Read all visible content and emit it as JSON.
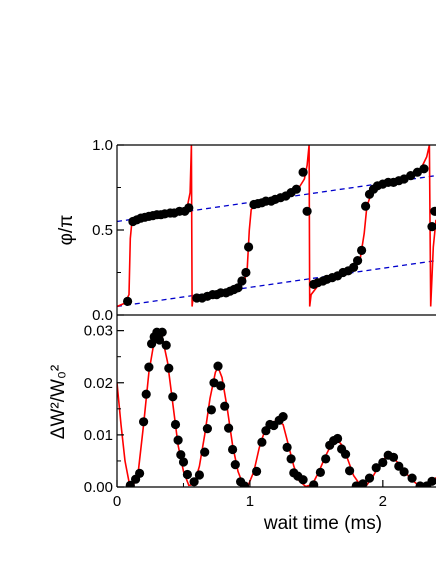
{
  "chart_data": [
    {
      "type": "scatter",
      "panel": "top",
      "ylabel": "φ/π",
      "xlim": [
        0,
        2.4
      ],
      "ylim": [
        0.0,
        1.0
      ],
      "yticks": [
        "0.0",
        "0.5",
        "1.0"
      ],
      "yticks_values": [
        0.0,
        0.5,
        1.0
      ],
      "grid": false,
      "colors": {
        "points": "#000000",
        "fit": "#ff0000",
        "reference": "#0000cc"
      },
      "series": [
        {
          "kind": "points",
          "values": [
            [
              0.08,
              0.08
            ],
            [
              0.12,
              0.55
            ],
            [
              0.15,
              0.56
            ],
            [
              0.18,
              0.57
            ],
            [
              0.21,
              0.575
            ],
            [
              0.24,
              0.58
            ],
            [
              0.27,
              0.585
            ],
            [
              0.3,
              0.59
            ],
            [
              0.33,
              0.59
            ],
            [
              0.36,
              0.595
            ],
            [
              0.4,
              0.6
            ],
            [
              0.43,
              0.6
            ],
            [
              0.47,
              0.61
            ],
            [
              0.51,
              0.61
            ],
            [
              0.54,
              0.63
            ],
            [
              0.6,
              0.1
            ],
            [
              0.64,
              0.1
            ],
            [
              0.68,
              0.11
            ],
            [
              0.72,
              0.12
            ],
            [
              0.75,
              0.12
            ],
            [
              0.78,
              0.13
            ],
            [
              0.82,
              0.13
            ],
            [
              0.85,
              0.14
            ],
            [
              0.88,
              0.15
            ],
            [
              0.91,
              0.16
            ],
            [
              0.94,
              0.2
            ],
            [
              0.97,
              0.25
            ],
            [
              0.99,
              0.4
            ],
            [
              1.03,
              0.65
            ],
            [
              1.06,
              0.655
            ],
            [
              1.09,
              0.66
            ],
            [
              1.12,
              0.67
            ],
            [
              1.16,
              0.67
            ],
            [
              1.19,
              0.68
            ],
            [
              1.23,
              0.69
            ],
            [
              1.27,
              0.7
            ],
            [
              1.31,
              0.72
            ],
            [
              1.35,
              0.74
            ],
            [
              1.4,
              0.84
            ],
            [
              1.43,
              0.61
            ],
            [
              1.48,
              0.18
            ],
            [
              1.51,
              0.19
            ],
            [
              1.55,
              0.2
            ],
            [
              1.58,
              0.21
            ],
            [
              1.62,
              0.22
            ],
            [
              1.66,
              0.23
            ],
            [
              1.7,
              0.25
            ],
            [
              1.74,
              0.26
            ],
            [
              1.78,
              0.28
            ],
            [
              1.81,
              0.32
            ],
            [
              1.84,
              0.38
            ],
            [
              1.87,
              0.64
            ],
            [
              1.9,
              0.71
            ],
            [
              1.93,
              0.74
            ],
            [
              1.96,
              0.76
            ],
            [
              2.0,
              0.77
            ],
            [
              2.04,
              0.78
            ],
            [
              2.08,
              0.78
            ],
            [
              2.12,
              0.79
            ],
            [
              2.16,
              0.8
            ],
            [
              2.21,
              0.82
            ],
            [
              2.26,
              0.84
            ],
            [
              2.31,
              0.86
            ],
            [
              2.37,
              0.52
            ],
            [
              2.39,
              0.61
            ]
          ]
        },
        {
          "kind": "fit",
          "values": [
            [
              0.0,
              0.05
            ],
            [
              0.06,
              0.07
            ],
            [
              0.09,
              0.12
            ],
            [
              0.1,
              0.45
            ],
            [
              0.11,
              0.53
            ],
            [
              0.14,
              0.56
            ],
            [
              0.25,
              0.58
            ],
            [
              0.4,
              0.6
            ],
            [
              0.5,
              0.61
            ],
            [
              0.53,
              0.64
            ],
            [
              0.55,
              0.72
            ],
            [
              0.56,
              1.0
            ],
            [
              0.565,
              0.05
            ],
            [
              0.57,
              0.09
            ],
            [
              0.65,
              0.1
            ],
            [
              0.8,
              0.13
            ],
            [
              0.9,
              0.15
            ],
            [
              0.96,
              0.2
            ],
            [
              0.98,
              0.28
            ],
            [
              0.995,
              0.5
            ],
            [
              1.01,
              0.62
            ],
            [
              1.04,
              0.65
            ],
            [
              1.2,
              0.68
            ],
            [
              1.3,
              0.71
            ],
            [
              1.37,
              0.75
            ],
            [
              1.41,
              0.8
            ],
            [
              1.43,
              0.88
            ],
            [
              1.445,
              1.0
            ],
            [
              1.45,
              0.05
            ],
            [
              1.46,
              0.12
            ],
            [
              1.52,
              0.18
            ],
            [
              1.65,
              0.22
            ],
            [
              1.78,
              0.27
            ],
            [
              1.83,
              0.33
            ],
            [
              1.86,
              0.48
            ],
            [
              1.88,
              0.64
            ],
            [
              1.92,
              0.73
            ],
            [
              2.0,
              0.77
            ],
            [
              2.15,
              0.8
            ],
            [
              2.28,
              0.85
            ],
            [
              2.33,
              0.93
            ],
            [
              2.35,
              1.0
            ],
            [
              2.36,
              0.05
            ],
            [
              2.38,
              0.4
            ],
            [
              2.4,
              0.56
            ]
          ]
        },
        {
          "kind": "reference",
          "values": [
            [
              0.0,
              0.55
            ],
            [
              2.4,
              0.82
            ]
          ]
        },
        {
          "kind": "reference",
          "values": [
            [
              0.0,
              0.05
            ],
            [
              2.4,
              0.32
            ]
          ]
        }
      ]
    },
    {
      "type": "scatter",
      "panel": "bottom",
      "ylabel": "ΔW²/W₀²",
      "xlabel": "wait time (ms)",
      "xlim": [
        0,
        2.4
      ],
      "ylim": [
        0.0,
        0.033
      ],
      "xticks": [
        "0",
        "1",
        "2"
      ],
      "xticks_values": [
        0,
        1,
        2
      ],
      "yticks": [
        "0.00",
        "0.01",
        "0.02",
        "0.03"
      ],
      "yticks_values": [
        0.0,
        0.01,
        0.02,
        0.03
      ],
      "grid": false,
      "colors": {
        "points": "#000000",
        "fit": "#ff0000"
      },
      "series": [
        {
          "kind": "points",
          "values": [
            [
              0.1,
              0.0003
            ],
            [
              0.14,
              0.0015
            ],
            [
              0.17,
              0.0026
            ],
            [
              0.2,
              0.0125
            ],
            [
              0.22,
              0.0178
            ],
            [
              0.24,
              0.023
            ],
            [
              0.26,
              0.0275
            ],
            [
              0.28,
              0.0288
            ],
            [
              0.3,
              0.0297
            ],
            [
              0.32,
              0.0282
            ],
            [
              0.34,
              0.0297
            ],
            [
              0.37,
              0.0272
            ],
            [
              0.39,
              0.0228
            ],
            [
              0.42,
              0.0173
            ],
            [
              0.44,
              0.012
            ],
            [
              0.46,
              0.009
            ],
            [
              0.48,
              0.0062
            ],
            [
              0.5,
              0.0048
            ],
            [
              0.53,
              0.0024
            ],
            [
              0.58,
              0.001
            ],
            [
              0.62,
              0.0023
            ],
            [
              0.66,
              0.0067
            ],
            [
              0.68,
              0.0112
            ],
            [
              0.71,
              0.0148
            ],
            [
              0.73,
              0.02
            ],
            [
              0.76,
              0.0232
            ],
            [
              0.78,
              0.0194
            ],
            [
              0.81,
              0.0155
            ],
            [
              0.84,
              0.0113
            ],
            [
              0.87,
              0.0072
            ],
            [
              0.89,
              0.0043
            ],
            [
              0.93,
              0.001
            ],
            [
              0.96,
              0.0002
            ],
            [
              1.05,
              0.003
            ],
            [
              1.09,
              0.0086
            ],
            [
              1.12,
              0.0108
            ],
            [
              1.15,
              0.012
            ],
            [
              1.18,
              0.0118
            ],
            [
              1.22,
              0.0128
            ],
            [
              1.25,
              0.0135
            ],
            [
              1.28,
              0.0076
            ],
            [
              1.31,
              0.0054
            ],
            [
              1.33,
              0.0027
            ],
            [
              1.36,
              0.0021
            ],
            [
              1.4,
              0.0014
            ],
            [
              1.48,
              0.0004
            ],
            [
              1.53,
              0.0028
            ],
            [
              1.57,
              0.0054
            ],
            [
              1.6,
              0.008
            ],
            [
              1.63,
              0.0089
            ],
            [
              1.66,
              0.0093
            ],
            [
              1.69,
              0.0073
            ],
            [
              1.72,
              0.0063
            ],
            [
              1.75,
              0.0031
            ],
            [
              1.8,
              0.0002
            ],
            [
              1.85,
              0.0006
            ],
            [
              1.9,
              0.0017
            ],
            [
              1.95,
              0.0037
            ],
            [
              2.0,
              0.0047
            ],
            [
              2.04,
              0.0061
            ],
            [
              2.08,
              0.0057
            ],
            [
              2.12,
              0.004
            ],
            [
              2.16,
              0.0029
            ],
            [
              2.22,
              0.0017
            ],
            [
              2.28,
              0.0002
            ],
            [
              2.33,
              0.0002
            ],
            [
              2.37,
              0.0011
            ]
          ]
        },
        {
          "kind": "fit",
          "values": [
            [
              0.0,
              0.02
            ],
            [
              0.03,
              0.012
            ],
            [
              0.06,
              0.005
            ],
            [
              0.09,
              0.001
            ],
            [
              0.12,
              0.0
            ],
            [
              0.16,
              0.003
            ],
            [
              0.2,
              0.012
            ],
            [
              0.24,
              0.022
            ],
            [
              0.28,
              0.028
            ],
            [
              0.31,
              0.0298
            ],
            [
              0.34,
              0.0288
            ],
            [
              0.38,
              0.024
            ],
            [
              0.42,
              0.016
            ],
            [
              0.46,
              0.008
            ],
            [
              0.5,
              0.003
            ],
            [
              0.54,
              0.0003
            ],
            [
              0.58,
              0.0005
            ],
            [
              0.62,
              0.004
            ],
            [
              0.66,
              0.01
            ],
            [
              0.7,
              0.017
            ],
            [
              0.74,
              0.022
            ],
            [
              0.76,
              0.023
            ],
            [
              0.79,
              0.021
            ],
            [
              0.83,
              0.015
            ],
            [
              0.87,
              0.008
            ],
            [
              0.91,
              0.003
            ],
            [
              0.95,
              0.0003
            ],
            [
              0.99,
              0.0005
            ],
            [
              1.03,
              0.003
            ],
            [
              1.07,
              0.0075
            ],
            [
              1.12,
              0.0115
            ],
            [
              1.17,
              0.0125
            ],
            [
              1.21,
              0.0126
            ],
            [
              1.25,
              0.012
            ],
            [
              1.29,
              0.008
            ],
            [
              1.33,
              0.004
            ],
            [
              1.37,
              0.0012
            ],
            [
              1.42,
              0.0001
            ],
            [
              1.47,
              0.0005
            ],
            [
              1.52,
              0.003
            ],
            [
              1.57,
              0.006
            ],
            [
              1.62,
              0.0085
            ],
            [
              1.66,
              0.009
            ],
            [
              1.7,
              0.0078
            ],
            [
              1.74,
              0.005
            ],
            [
              1.78,
              0.0022
            ],
            [
              1.83,
              0.0004
            ],
            [
              1.88,
              0.0004
            ],
            [
              1.93,
              0.0022
            ],
            [
              1.98,
              0.0045
            ],
            [
              2.03,
              0.006
            ],
            [
              2.07,
              0.0058
            ],
            [
              2.12,
              0.0045
            ],
            [
              2.17,
              0.0028
            ],
            [
              2.22,
              0.0013
            ],
            [
              2.27,
              0.0003
            ],
            [
              2.32,
              0.0002
            ],
            [
              2.37,
              0.001
            ],
            [
              2.4,
              0.0018
            ]
          ]
        }
      ]
    }
  ]
}
